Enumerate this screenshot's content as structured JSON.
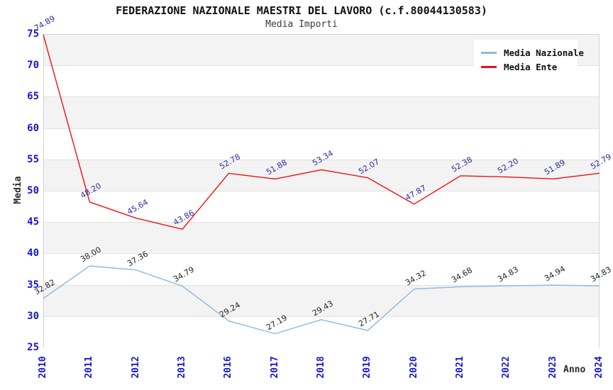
{
  "title": "FEDERAZIONE NAZIONALE MAESTRI DEL LAVORO (c.f.80044130583)",
  "subtitle": "Media Importi",
  "chart_data": {
    "type": "line",
    "categories": [
      "2010",
      "2011",
      "2012",
      "2013",
      "2016",
      "2017",
      "2018",
      "2019",
      "2020",
      "2021",
      "2022",
      "2023",
      "2024"
    ],
    "series": [
      {
        "name": "Media Nazionale",
        "color": "#8cb8e4",
        "label_color": "#1f1f1f",
        "values": [
          32.82,
          38.0,
          37.36,
          34.79,
          29.24,
          27.19,
          29.43,
          27.71,
          34.32,
          34.68,
          34.83,
          34.94,
          34.83
        ],
        "labels": [
          "32.82",
          "38.00",
          "37.36",
          "34.79",
          "29.24",
          "27.19",
          "29.43",
          "27.71",
          "34.32",
          "34.68",
          "34.83",
          "34.94",
          "34.83"
        ]
      },
      {
        "name": "Media Ente",
        "color": "#ee1111",
        "label_color": "#2b2ba0",
        "values": [
          74.89,
          48.2,
          45.64,
          43.86,
          52.78,
          51.88,
          53.34,
          52.07,
          47.87,
          52.38,
          52.2,
          51.89,
          52.79
        ],
        "labels": [
          "74.89",
          "48.20",
          "45.64",
          "43.86",
          "52.78",
          "51.88",
          "53.34",
          "52.07",
          "47.87",
          "52.38",
          "52.20",
          "51.89",
          "52.79"
        ]
      }
    ],
    "title": "FEDERAZIONE NAZIONALE MAESTRI DEL LAVORO (c.f.80044130583)",
    "subtitle": "Media Importi",
    "xlabel": "Anno",
    "ylabel": "Media",
    "ylim": [
      25,
      75
    ],
    "ytick_step": 5,
    "grid": "horizontal",
    "band_fill": "alternating",
    "legend_position": "top-right"
  },
  "legend": {
    "items": [
      {
        "label": "Media Nazionale",
        "color": "#8cb8e4"
      },
      {
        "label": "Media Ente",
        "color": "#ee1111"
      }
    ]
  },
  "colors": {
    "tick_label": "#1717cf",
    "band_gray": "#f3f3f3",
    "gridline": "#e2e2e2",
    "plot_border": "#d4d4d4",
    "title_text": "#111111",
    "subtitle_text": "#3c3c3c"
  }
}
